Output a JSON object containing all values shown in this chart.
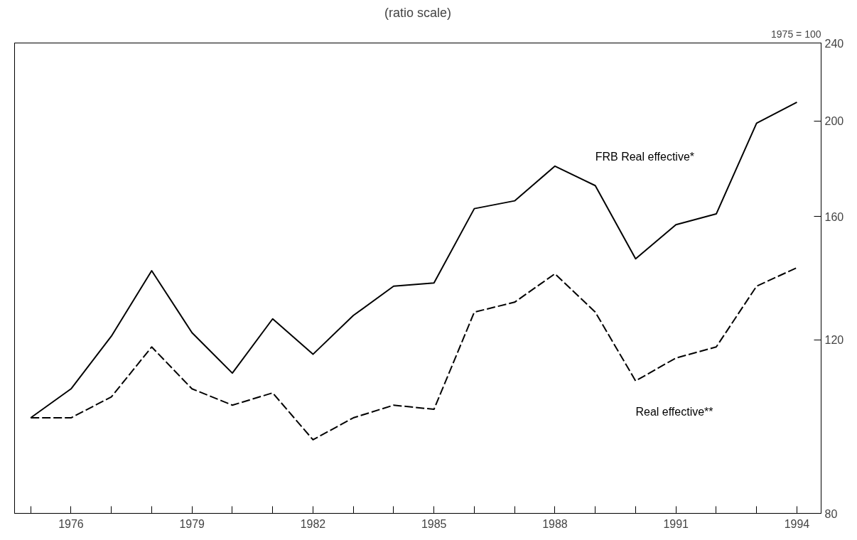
{
  "chart_data": {
    "type": "line",
    "subtitle": "(ratio scale)",
    "ylabel": "1975 = 100",
    "x": [
      1975,
      1976,
      1977,
      1978,
      1979,
      1980,
      1981,
      1982,
      1983,
      1984,
      1985,
      1986,
      1987,
      1988,
      1989,
      1990,
      1991,
      1992,
      1993,
      1994
    ],
    "series": [
      {
        "name": "FRB Real effective*",
        "color": "#000000",
        "line_style": "solid",
        "values": [
          100,
          107,
          121,
          141,
          122,
          111,
          126,
          116,
          127,
          136,
          137,
          163,
          166,
          180,
          172,
          145,
          157,
          161,
          199,
          209
        ]
      },
      {
        "name": "Real effective**",
        "color": "#000000",
        "line_style": "dashed",
        "values": [
          100,
          100,
          105,
          118,
          107,
          103,
          106,
          95,
          100,
          103,
          102,
          128,
          131,
          140,
          128,
          109,
          115,
          118,
          136,
          142
        ]
      }
    ],
    "log": "y",
    "ylim": [
      80,
      240
    ],
    "yticks": [
      80,
      120,
      160,
      200,
      240
    ],
    "xlim": [
      1974.6,
      1994.6
    ],
    "xticks": [
      {
        "value": 1975,
        "label": null
      },
      {
        "value": 1976,
        "label": "1976"
      },
      {
        "value": 1977,
        "label": null
      },
      {
        "value": 1978,
        "label": null
      },
      {
        "value": 1979,
        "label": "1979"
      },
      {
        "value": 1980,
        "label": null
      },
      {
        "value": 1981,
        "label": null
      },
      {
        "value": 1982,
        "label": "1982"
      },
      {
        "value": 1983,
        "label": null
      },
      {
        "value": 1984,
        "label": null
      },
      {
        "value": 1985,
        "label": "1985"
      },
      {
        "value": 1986,
        "label": null
      },
      {
        "value": 1987,
        "label": null
      },
      {
        "value": 1988,
        "label": "1988"
      },
      {
        "value": 1989,
        "label": null
      },
      {
        "value": 1990,
        "label": null
      },
      {
        "value": 1991,
        "label": "1991"
      },
      {
        "value": 1992,
        "label": null
      },
      {
        "value": 1993,
        "label": null
      },
      {
        "value": 1994,
        "label": "1994"
      }
    ],
    "grid": false,
    "marker": "none"
  }
}
